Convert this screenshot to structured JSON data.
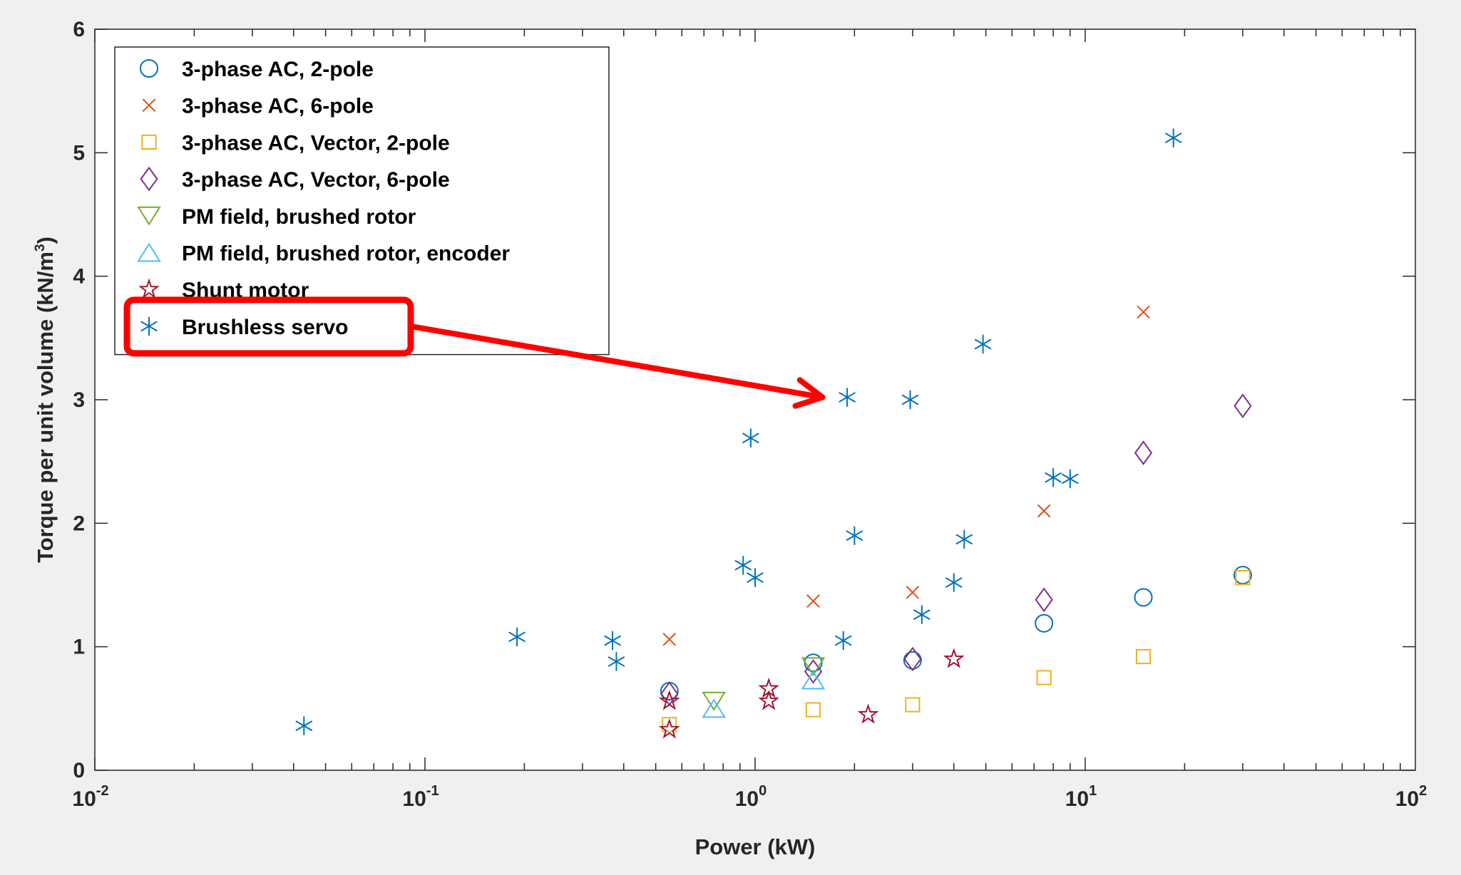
{
  "chart_data": {
    "type": "scatter",
    "title": "",
    "xlabel": "Power (kW)",
    "ylabel_text": "Torque per unit volume (kN/m",
    "ylabel_sup": "3",
    "ylabel_close": ")",
    "x_scale": "log",
    "xlim": [
      0.01,
      100
    ],
    "ylim": [
      0,
      6
    ],
    "x_ticks": [
      {
        "value": 0.01,
        "base": "10",
        "exp": "-2"
      },
      {
        "value": 0.1,
        "base": "10",
        "exp": "-1"
      },
      {
        "value": 1,
        "base": "10",
        "exp": "0"
      },
      {
        "value": 10,
        "base": "10",
        "exp": "1"
      },
      {
        "value": 100,
        "base": "10",
        "exp": "2"
      }
    ],
    "y_ticks": [
      "0",
      "1",
      "2",
      "3",
      "4",
      "5",
      "6"
    ],
    "grid": false,
    "legend_position": "top-left",
    "series": [
      {
        "name": "3-phase AC, 2-pole",
        "marker": "circle",
        "color": "#0072bd",
        "points": [
          [
            0.55,
            0.64
          ],
          [
            1.5,
            0.87
          ],
          [
            3.0,
            0.89
          ],
          [
            7.5,
            1.19
          ],
          [
            15,
            1.4
          ],
          [
            30,
            1.58
          ]
        ]
      },
      {
        "name": "3-phase AC, 6-pole",
        "marker": "x",
        "color": "#d95319",
        "points": [
          [
            0.55,
            1.06
          ],
          [
            1.5,
            1.37
          ],
          [
            3.0,
            1.44
          ],
          [
            7.5,
            2.1
          ],
          [
            15,
            3.71
          ]
        ]
      },
      {
        "name": "3-phase AC, Vector, 2-pole",
        "marker": "square",
        "color": "#edb120",
        "points": [
          [
            0.55,
            0.37
          ],
          [
            1.5,
            0.49
          ],
          [
            3.0,
            0.53
          ],
          [
            7.5,
            0.75
          ],
          [
            15,
            0.92
          ],
          [
            30,
            1.56
          ]
        ]
      },
      {
        "name": "3-phase AC, Vector, 6-pole",
        "marker": "diamond",
        "color": "#7e2f8e",
        "points": [
          [
            0.55,
            0.62
          ],
          [
            1.5,
            0.8
          ],
          [
            3.0,
            0.9
          ],
          [
            7.5,
            1.38
          ],
          [
            15,
            2.57
          ],
          [
            30,
            2.95
          ]
        ]
      },
      {
        "name": "PM field, brushed rotor",
        "marker": "triangle-down",
        "color": "#77ac30",
        "points": [
          [
            0.75,
            0.56
          ],
          [
            1.5,
            0.84
          ]
        ]
      },
      {
        "name": "PM field, brushed rotor, encoder",
        "marker": "triangle-up",
        "color": "#4dbeee",
        "points": [
          [
            0.75,
            0.5
          ],
          [
            1.5,
            0.73
          ]
        ]
      },
      {
        "name": "Shunt motor",
        "marker": "star",
        "color": "#a2142f",
        "points": [
          [
            0.55,
            0.33
          ],
          [
            0.55,
            0.56
          ],
          [
            1.1,
            0.56
          ],
          [
            1.1,
            0.66
          ],
          [
            2.2,
            0.45
          ],
          [
            4.0,
            0.9
          ]
        ]
      },
      {
        "name": "Brushless servo",
        "marker": "asterisk",
        "color": "#0072bd",
        "points": [
          [
            0.043,
            0.36
          ],
          [
            0.19,
            1.08
          ],
          [
            0.37,
            1.05
          ],
          [
            0.38,
            0.88
          ],
          [
            0.92,
            1.66
          ],
          [
            0.97,
            2.69
          ],
          [
            1.0,
            1.56
          ],
          [
            1.85,
            1.05
          ],
          [
            1.9,
            3.02
          ],
          [
            2.0,
            1.9
          ],
          [
            2.95,
            3.0
          ],
          [
            3.2,
            1.26
          ],
          [
            4.0,
            1.52
          ],
          [
            4.3,
            1.87
          ],
          [
            4.9,
            3.45
          ],
          [
            8.0,
            2.37
          ],
          [
            9.0,
            2.36
          ],
          [
            18.5,
            5.12
          ]
        ]
      }
    ],
    "annotation": {
      "type": "highlight-box-with-arrow",
      "color": "#ff0000",
      "highlighted_legend_entry": "Brushless servo",
      "points_to_data": [
        1.6,
        3.02
      ]
    }
  }
}
